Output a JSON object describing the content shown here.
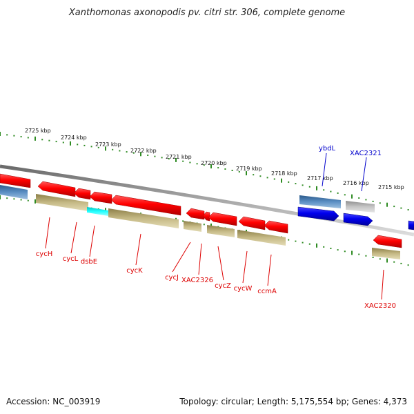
{
  "title": "Xanthomonas axonopodis pv. citri str. 306, complete genome",
  "footer": {
    "accession": "Accession: NC_003919",
    "summary": "Topology: circular; Length: 5,175,554 bp; Genes: 4,373"
  },
  "colors": {
    "gene_red": "#ff0000",
    "gene_label_red": "#dd0000",
    "gene_blue": "#0000ee",
    "gene_label_blue": "#0000cc",
    "steelblue": "#4a7fb5",
    "grey_gene": "#b8b8b8",
    "khaki": "#bdb07a",
    "cyan": "#00e8e8",
    "tick_green": "#2e8b22",
    "backbone": "#8a8a8a"
  },
  "chart_data": {
    "type": "genome-map",
    "scale_unit": "kbp",
    "scale_labels": [
      {
        "kbp": 2725,
        "text": "2725 kbp"
      },
      {
        "kbp": 2724,
        "text": "2724 kbp"
      },
      {
        "kbp": 2723,
        "text": "2723 kbp"
      },
      {
        "kbp": 2722,
        "text": "2722 kbp"
      },
      {
        "kbp": 2721,
        "text": "2721 kbp"
      },
      {
        "kbp": 2720,
        "text": "2720 kbp"
      },
      {
        "kbp": 2719,
        "text": "2719 kbp"
      },
      {
        "kbp": 2718,
        "text": "2718 kbp"
      },
      {
        "kbp": 2717,
        "text": "2717 kbp"
      },
      {
        "kbp": 2716,
        "text": "2716 kbp"
      },
      {
        "kbp": 2715,
        "text": "2715 kbp"
      }
    ],
    "gene_labels": [
      {
        "name": "cycH",
        "color": "red"
      },
      {
        "name": "cycL",
        "color": "red"
      },
      {
        "name": "dsbE",
        "color": "red"
      },
      {
        "name": "cycK",
        "color": "red"
      },
      {
        "name": "cycJ",
        "color": "red"
      },
      {
        "name": "XAC2326",
        "color": "red"
      },
      {
        "name": "cycZ",
        "color": "red"
      },
      {
        "name": "cycW",
        "color": "red"
      },
      {
        "name": "ccmA",
        "color": "red"
      },
      {
        "name": "XAC2320",
        "color": "red"
      },
      {
        "name": "ybdL",
        "color": "blue"
      },
      {
        "name": "XAC2321",
        "color": "blue"
      }
    ]
  }
}
